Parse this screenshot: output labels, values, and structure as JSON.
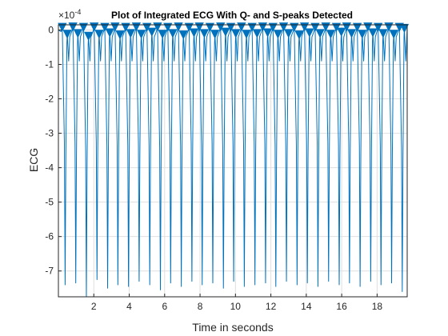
{
  "chart_data": {
    "type": "line",
    "title": "Plot of Integrated ECG With Q- and S-peaks Detected",
    "xlabel": "Time in seconds",
    "ylabel": "ECG",
    "exponent_label": "×10",
    "exponent_power": "-4",
    "xlim": [
      0,
      19.7
    ],
    "ylim": [
      -7.75,
      0.15
    ],
    "xticks": [
      2,
      4,
      6,
      8,
      10,
      12,
      14,
      16,
      18
    ],
    "yticks": [
      -7,
      -6,
      -5,
      -4,
      -3,
      -2,
      -1,
      0
    ],
    "grid": true,
    "line_color": "#0072BD",
    "marker": "triangle-down",
    "beat_times": [
      0.38,
      0.98,
      1.58,
      2.18,
      2.78,
      3.36,
      3.96,
      4.56,
      5.16,
      5.76,
      6.34,
      6.94,
      7.54,
      8.12,
      8.72,
      9.32,
      9.9,
      10.5,
      11.1,
      11.7,
      12.28,
      12.88,
      13.48,
      14.06,
      14.66,
      15.26,
      15.86,
      16.44,
      17.04,
      17.64,
      18.22,
      18.82,
      19.42
    ],
    "beat_minima": [
      -7.4,
      -7.35,
      -7.75,
      -7.25,
      -7.5,
      -7.4,
      -7.45,
      -7.3,
      -7.4,
      -7.55,
      -7.35,
      -7.45,
      -7.3,
      -7.4,
      -7.35,
      -7.5,
      -7.3,
      -7.45,
      -7.4,
      -7.35,
      -7.45,
      -7.3,
      -7.4,
      -7.35,
      -7.45,
      -7.3,
      -7.4,
      -7.35,
      -7.45,
      -7.3,
      -7.4,
      -7.35,
      -7.6
    ],
    "q_peaks": {
      "times": [
        0.22,
        0.82,
        1.42,
        2.02,
        2.62,
        3.2,
        3.8,
        4.4,
        5.0,
        5.6,
        6.18,
        6.78,
        7.38,
        7.96,
        8.56,
        9.16,
        9.74,
        10.34,
        10.94,
        11.54,
        12.12,
        12.72,
        13.32,
        13.9,
        14.5,
        15.1,
        15.7,
        16.28,
        16.88,
        17.48,
        18.06,
        18.66,
        19.26
      ],
      "values": [
        0.08,
        0.09,
        0.08,
        0.09,
        0.08,
        0.09,
        0.08,
        0.09,
        0.08,
        0.09,
        0.08,
        0.09,
        0.08,
        0.09,
        0.08,
        0.09,
        0.08,
        0.09,
        0.08,
        0.09,
        0.08,
        0.09,
        0.08,
        0.09,
        0.08,
        0.09,
        0.08,
        0.09,
        0.08,
        0.09,
        0.08,
        0.09,
        0.08
      ]
    },
    "s_peaks": {
      "times": [
        0.5,
        1.1,
        1.7,
        2.3,
        2.9,
        3.48,
        4.08,
        4.68,
        5.28,
        5.88,
        6.46,
        7.06,
        7.66,
        8.24,
        8.84,
        9.44,
        10.02,
        10.62,
        11.22,
        11.82,
        12.4,
        13.0,
        13.6,
        14.18,
        14.78,
        15.38,
        15.98,
        16.56,
        17.16,
        17.76,
        18.34,
        18.94,
        19.54
      ],
      "values": [
        -0.12,
        -0.1,
        -0.18,
        -0.12,
        -0.08,
        -0.14,
        -0.1,
        -0.12,
        -0.06,
        -0.12,
        -0.1,
        -0.14,
        -0.08,
        -0.1,
        -0.12,
        -0.06,
        -0.1,
        -0.12,
        -0.1,
        -0.08,
        -0.12,
        -0.1,
        -0.14,
        -0.08,
        -0.1,
        -0.12,
        -0.06,
        -0.1,
        -0.12,
        -0.08,
        -0.1,
        -0.12,
        0.05
      ]
    }
  }
}
